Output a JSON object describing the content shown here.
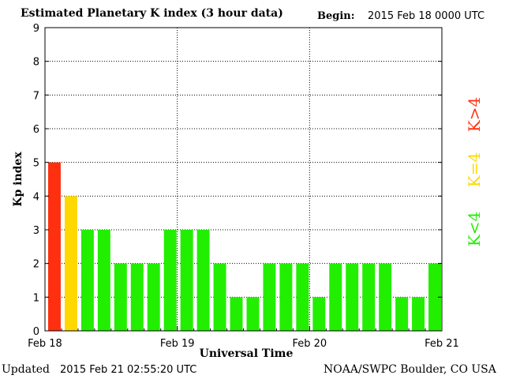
{
  "header": {
    "title": "Estimated Planetary K index (3 hour data)",
    "begin_label": "Begin:",
    "begin_value": "2015 Feb 18 0000 UTC"
  },
  "footer": {
    "updated_label": "Updated",
    "updated_value": "2015 Feb 21 02:55:20 UTC",
    "source": "NOAA/SWPC Boulder, CO USA"
  },
  "legend": [
    {
      "label": "K>4",
      "color": "#ff3010"
    },
    {
      "label": "K=4",
      "color": "#ffd800"
    },
    {
      "label": "K<4",
      "color": "#22ee00"
    }
  ],
  "chart_data": {
    "type": "bar",
    "title": "Estimated Planetary K index (3 hour data)",
    "xlabel": "Universal Time",
    "ylabel": "Kp index",
    "ylim": [
      0,
      9
    ],
    "yticks": [
      "0",
      "1",
      "2",
      "3",
      "4",
      "5",
      "6",
      "7",
      "8",
      "9"
    ],
    "xticks": [
      "Feb 18",
      "Feb 19",
      "Feb 20",
      "Feb 21"
    ],
    "grid": true,
    "values": [
      5,
      4,
      3,
      3,
      2,
      2,
      2,
      3,
      3,
      3,
      2,
      1,
      1,
      2,
      2,
      2,
      1,
      2,
      2,
      2,
      2,
      1,
      1,
      2
    ],
    "colors": {
      "above": "#ff3010",
      "equal": "#ffd800",
      "below": "#22ee00"
    }
  }
}
